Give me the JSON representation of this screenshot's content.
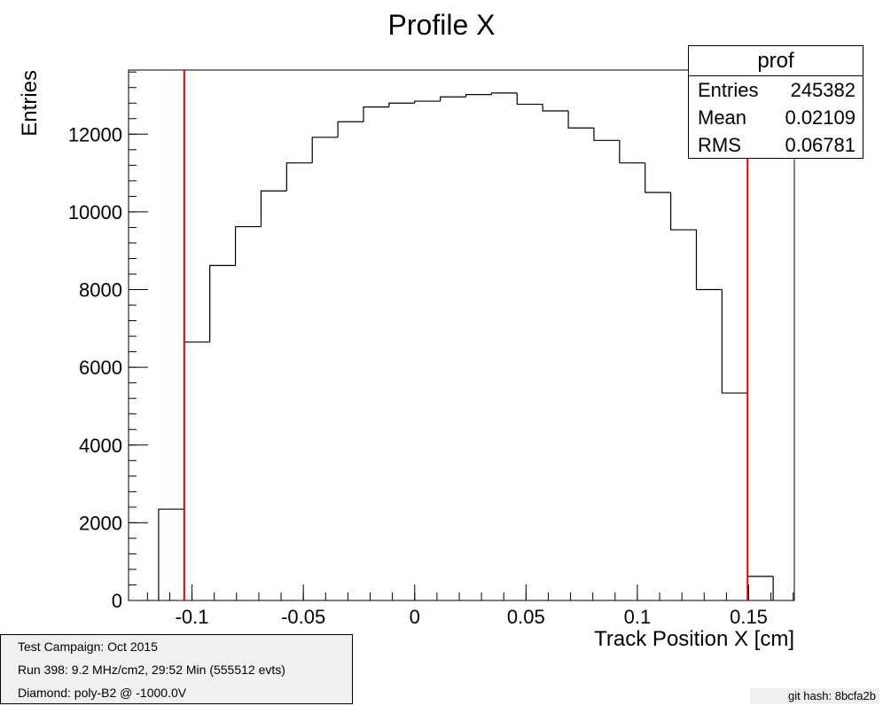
{
  "chart_data": {
    "type": "histogram",
    "title": "Profile X",
    "xlabel": "Track Position X [cm]",
    "ylabel": "Entries",
    "xlim": [
      -0.1285,
      0.1705
    ],
    "ylim": [
      0,
      13650
    ],
    "bin_edges": [
      -0.115,
      -0.1035,
      -0.092,
      -0.0805,
      -0.069,
      -0.0575,
      -0.046,
      -0.0345,
      -0.023,
      -0.0115,
      0.0,
      0.0115,
      0.023,
      0.0345,
      0.046,
      0.0575,
      0.069,
      0.0805,
      0.092,
      0.1035,
      0.115,
      0.1265,
      0.138,
      0.1495,
      0.161
    ],
    "values": [
      2350,
      6650,
      8620,
      9620,
      10540,
      11260,
      11920,
      12320,
      12700,
      12800,
      12850,
      12960,
      13020,
      13060,
      12770,
      12600,
      12160,
      11840,
      11260,
      10500,
      9540,
      8000,
      5340,
      620
    ],
    "xticks": [
      -0.1,
      -0.05,
      0,
      0.05,
      0.1,
      0.15
    ],
    "xtick_labels": [
      "-0.1",
      "-0.05",
      "0",
      "0.05",
      "0.1",
      "0.15"
    ],
    "yticks": [
      0,
      2000,
      4000,
      6000,
      8000,
      10000,
      12000
    ],
    "ytick_labels": [
      "0",
      "2000",
      "4000",
      "6000",
      "8000",
      "10000",
      "12000"
    ],
    "cut_lines": [
      -0.1035,
      0.1495
    ],
    "cut_line_color": "#dd0000",
    "line_color": "#000000",
    "legend_position": "top-right"
  },
  "stats": {
    "title": "prof",
    "rows": [
      {
        "key": "Entries",
        "value": "245382"
      },
      {
        "key": "Mean",
        "value": "0.02109"
      },
      {
        "key": "RMS",
        "value": "0.06781"
      }
    ]
  },
  "info": {
    "lines": [
      "Test Campaign: Oct 2015",
      "Run 398: 9.2 MHz/cm2, 29:52 Min (555512 evts)",
      "Diamond: poly-B2 @ -1000.0V"
    ]
  },
  "footer": {
    "git_hash": "git hash: 8bcfa2b"
  }
}
